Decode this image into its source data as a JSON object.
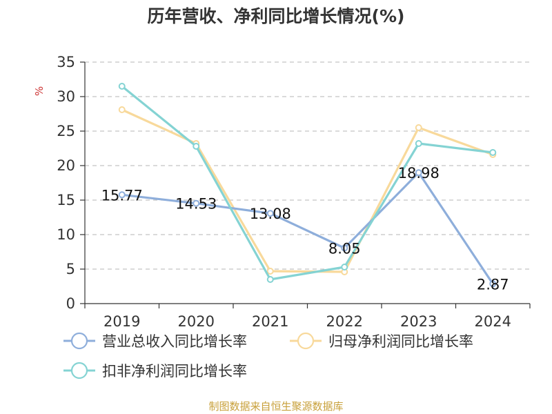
{
  "chart_data": {
    "type": "line",
    "title": "历年营收、净利同比增长情况(%)",
    "ylabel": "%",
    "xlabel": "",
    "categories": [
      "2019",
      "2020",
      "2021",
      "2022",
      "2023",
      "2024"
    ],
    "ylim": [
      0,
      35
    ],
    "yticks": [
      0,
      5,
      10,
      15,
      20,
      25,
      30,
      35
    ],
    "grid": true,
    "legend_position": "bottom",
    "series": [
      {
        "name": "营业总收入同比增长率",
        "color": "#8eaedb",
        "values": [
          15.77,
          14.53,
          13.08,
          8.05,
          18.98,
          2.87
        ],
        "labels": [
          "15.77",
          "14.53",
          "13.08",
          "8.05",
          "18.98",
          "2.87"
        ]
      },
      {
        "name": "归母净利润同比增长率",
        "color": "#f8d99b",
        "values": [
          28.1,
          23.2,
          4.7,
          4.6,
          25.5,
          21.6
        ]
      },
      {
        "name": "扣非净利润同比增长率",
        "color": "#84d3d3",
        "values": [
          31.5,
          22.8,
          3.5,
          5.3,
          23.2,
          21.9
        ]
      }
    ],
    "source": "制图数据来自恒生聚源数据库"
  }
}
